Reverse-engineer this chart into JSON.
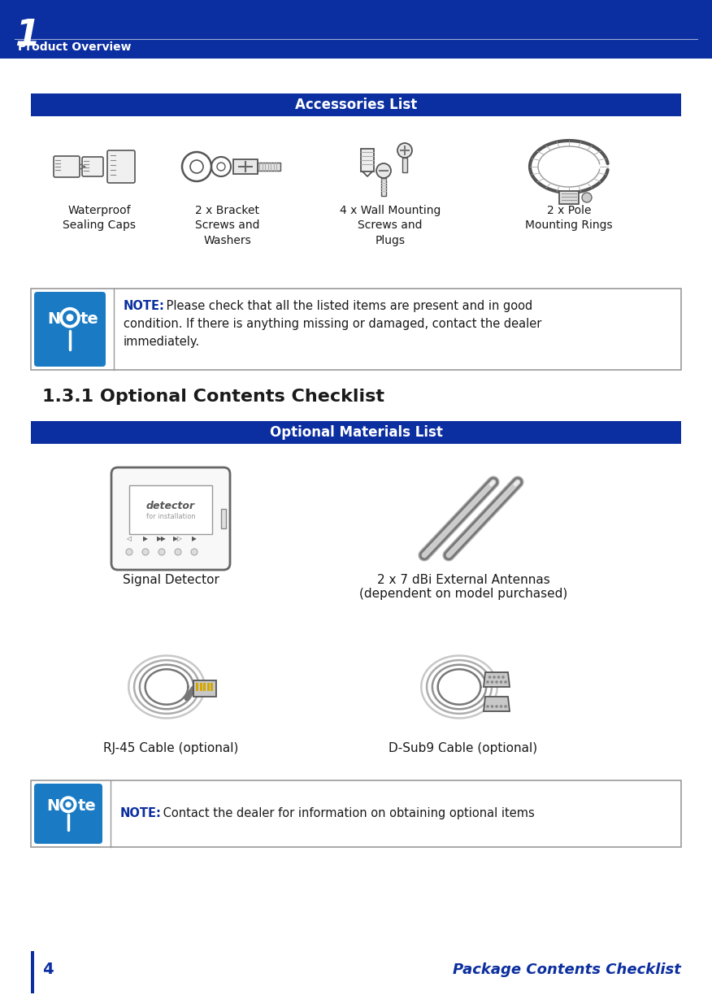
{
  "header_bg_color": "#0B2EA0",
  "header_text_color": "#FFFFFF",
  "header_number": "1",
  "header_subtitle": "Product Overview",
  "page_bg_color": "#FFFFFF",
  "section_bar_color": "#0B2EA0",
  "section_bar_text_color": "#FFFFFF",
  "accessories_title": "Accessories List",
  "accessories_items": [
    {
      "label": "Waterproof\nSealing Caps"
    },
    {
      "label": "2 x Bracket\nScrews and\nWashers"
    },
    {
      "label": "4 x Wall Mounting\nScrews and\nPlugs"
    },
    {
      "label": "2 x Pole\nMounting Rings"
    }
  ],
  "note1_lines": [
    " Please check that all the listed items are present and in good",
    "condition. If there is anything missing or damaged, contact the dealer",
    "immediately."
  ],
  "note1_bold": "NOTE:",
  "optional_section_title": "1.3.1 Optional Contents Checklist",
  "optional_materials_title": "Optional Materials List",
  "opt_label_det": "Signal Detector",
  "opt_label_ant": "2 x 7 dBi External Antennas\n(dependent on model purchased)",
  "opt_label_rj": "RJ-45 Cable (optional)",
  "opt_label_dsub": "D-Sub9 Cable (optional)",
  "note2_line": " Contact the dealer for information on obtaining optional items",
  "note2_bold": "NOTE:",
  "footer_page_num": "4",
  "footer_title": "Package Contents Checklist",
  "note_icon_bg": "#1A7BC4",
  "dark_blue": "#0B2EA0",
  "text_color": "#1a1a1a",
  "border_color": "#999999"
}
